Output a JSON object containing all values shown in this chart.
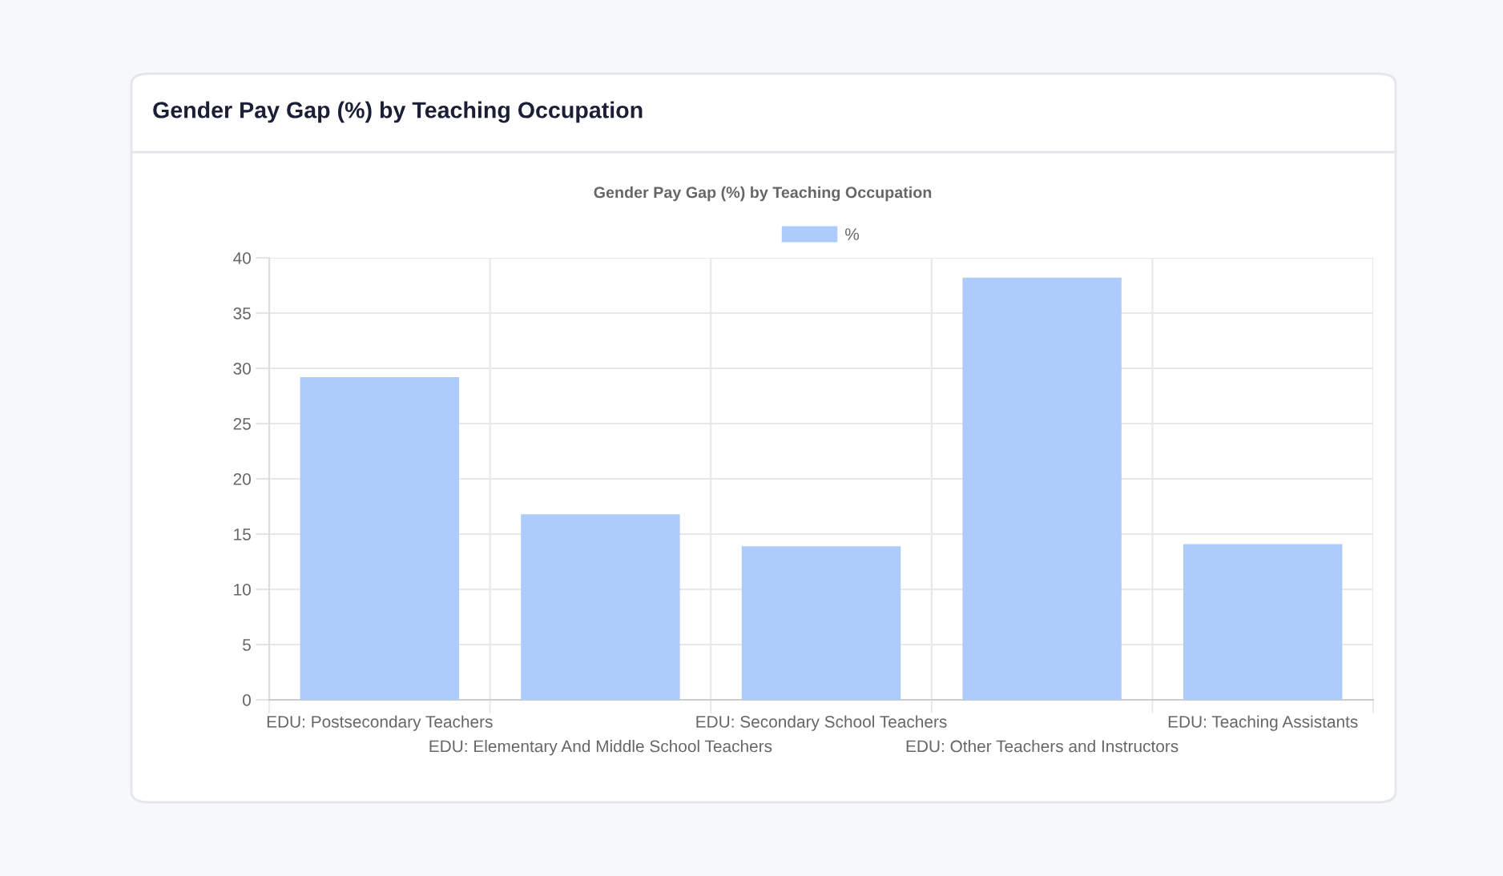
{
  "chart_data": {
    "type": "bar",
    "title": "Gender Pay Gap (%) by Teaching Occupation",
    "subtitle": "Gender Pay Gap (%) by Teaching Occupation",
    "categories": [
      "EDU: Postsecondary Teachers",
      "EDU: Elementary And Middle School Teachers",
      "EDU: Secondary School Teachers",
      "EDU: Other Teachers and Instructors",
      "EDU: Teaching Assistants"
    ],
    "series": [
      {
        "name": "%",
        "color": "#adcbfb",
        "values": [
          29.2,
          16.8,
          13.9,
          38.2,
          14.1
        ]
      }
    ],
    "ylim": [
      0,
      40
    ],
    "yticks": [
      0,
      5,
      10,
      15,
      20,
      25,
      30,
      35,
      40
    ],
    "grid": true,
    "legend": "top"
  }
}
